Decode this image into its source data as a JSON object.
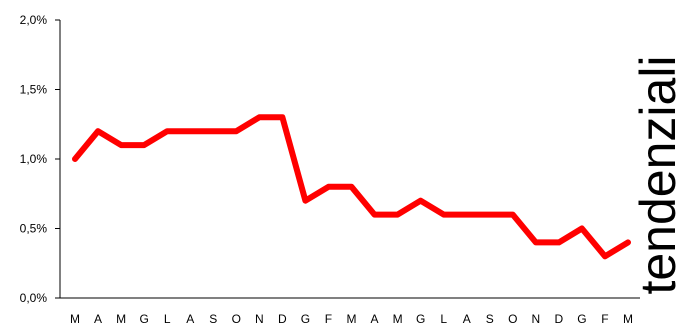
{
  "chart_data": {
    "type": "line",
    "title": "",
    "xlabel": "",
    "ylabel": "",
    "ylim": [
      0,
      2.0
    ],
    "yticks": [
      "0,0%",
      "0,5%",
      "1,0%",
      "1,5%",
      "2,0%"
    ],
    "ytick_values": [
      0,
      0.5,
      1.0,
      1.5,
      2.0
    ],
    "grid": false,
    "categories": [
      "M",
      "A",
      "M",
      "G",
      "L",
      "A",
      "S",
      "O",
      "N",
      "D",
      "G",
      "F",
      "M",
      "A",
      "M",
      "G",
      "L",
      "A",
      "S",
      "O",
      "N",
      "D",
      "G",
      "F",
      "M"
    ],
    "series": [
      {
        "color": "#ff0000",
        "values": [
          1.0,
          1.2,
          1.1,
          1.1,
          1.2,
          1.2,
          1.2,
          1.2,
          1.3,
          1.3,
          0.7,
          0.8,
          0.8,
          0.6,
          0.6,
          0.7,
          0.6,
          0.6,
          0.6,
          0.6,
          0.4,
          0.4,
          0.5,
          0.3,
          0.4
        ]
      }
    ]
  },
  "side_label": "tendenziali",
  "colors": {
    "line": "#ff0000",
    "side_label": "#f3b8b8",
    "axis": "#000000"
  }
}
